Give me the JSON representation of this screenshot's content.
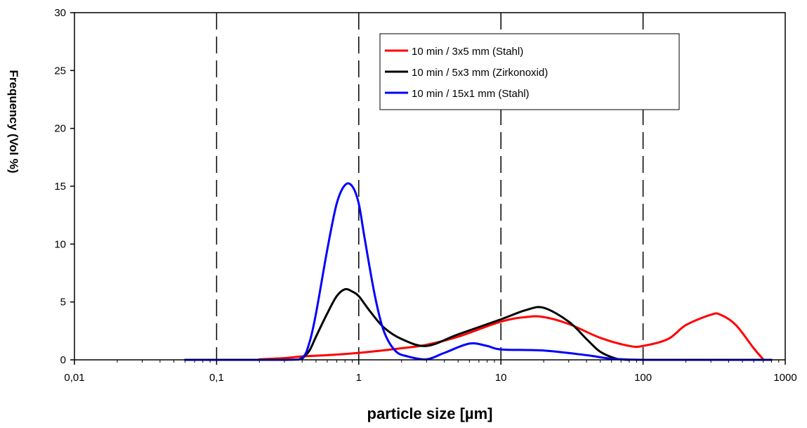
{
  "chart_data": {
    "type": "line",
    "title": "",
    "xlabel": "particle size  [µm]",
    "ylabel": "Frequency (Vol %)",
    "x_scale": "log",
    "xlim": [
      0.01,
      1000
    ],
    "ylim": [
      0,
      30
    ],
    "x_ticks": [
      0.01,
      0.1,
      1,
      10,
      100,
      1000
    ],
    "x_tick_labels": [
      "0,01",
      "0,1",
      "1",
      "10",
      "100",
      "1000"
    ],
    "y_ticks": [
      0,
      5,
      10,
      15,
      20,
      25,
      30
    ],
    "y_tick_labels": [
      "0",
      "5",
      "10",
      "15",
      "20",
      "25",
      "30"
    ],
    "vertical_gridlines": "dashed at each decade",
    "legend_position": "top-center",
    "series": [
      {
        "name": "10 min / 3x5 mm (Stahl)",
        "color": "#ff0000",
        "x": [
          0.2,
          0.3,
          0.4,
          0.6,
          1.0,
          2.0,
          3.0,
          5.0,
          10,
          15,
          20,
          30,
          50,
          80,
          100,
          150,
          200,
          300,
          350,
          450,
          600,
          700
        ],
        "y": [
          0.05,
          0.15,
          0.3,
          0.4,
          0.6,
          1.0,
          1.3,
          2.0,
          3.3,
          3.7,
          3.7,
          3.1,
          1.9,
          1.2,
          1.2,
          1.8,
          3.0,
          3.9,
          3.9,
          3.0,
          1.0,
          0.05
        ]
      },
      {
        "name": "10 min / 5x3 mm (Zirkonoxid)",
        "color": "#000000",
        "x": [
          0.4,
          0.45,
          0.5,
          0.6,
          0.7,
          0.8,
          0.9,
          1.0,
          1.2,
          1.5,
          2.0,
          3.0,
          5.0,
          10,
          15,
          20,
          30,
          40,
          50,
          65,
          80
        ],
        "y": [
          0.1,
          0.8,
          2.0,
          4.0,
          5.5,
          6.1,
          5.9,
          5.5,
          4.2,
          2.8,
          1.8,
          1.2,
          2.2,
          3.5,
          4.3,
          4.5,
          3.3,
          1.8,
          0.7,
          0.1,
          0.0
        ]
      },
      {
        "name": "10 min / 15x1 mm (Stahl)",
        "color": "#0000ff",
        "x": [
          0.06,
          0.3,
          0.4,
          0.45,
          0.5,
          0.6,
          0.7,
          0.8,
          0.9,
          1.0,
          1.1,
          1.3,
          1.5,
          1.8,
          2.2,
          3.0,
          4.0,
          6.0,
          8.0,
          10,
          20,
          40,
          60,
          100,
          300,
          800
        ],
        "y": [
          0.0,
          0.0,
          0.2,
          1.5,
          4.0,
          9.5,
          13.5,
          15.1,
          15.0,
          13.5,
          10.5,
          5.5,
          2.5,
          0.8,
          0.3,
          0.05,
          0.6,
          1.4,
          1.2,
          0.9,
          0.8,
          0.4,
          0.1,
          0.0,
          0.0,
          0.0
        ]
      }
    ]
  }
}
